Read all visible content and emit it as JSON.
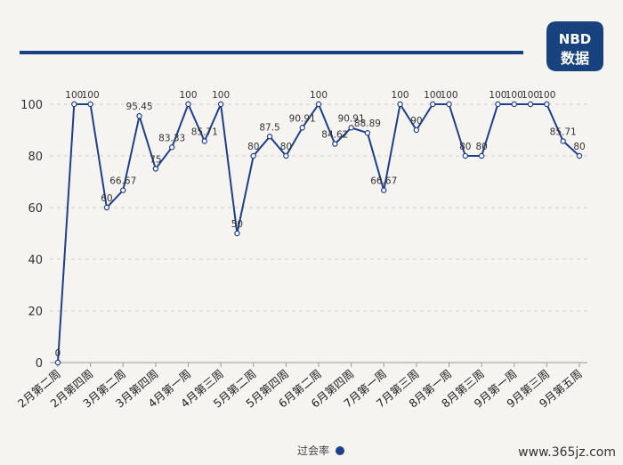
{
  "logo": {
    "line1": "NBD",
    "line2": "数据",
    "color": "#17427e"
  },
  "colors": {
    "line": "#1f3f88",
    "header_bar": "#17427e",
    "grid": "#cfcfcf"
  },
  "legend": {
    "label": "过会率"
  },
  "watermark": "www.365jz.com",
  "chart_data": {
    "type": "line",
    "ylim": [
      0,
      100
    ],
    "yticks": [
      0,
      20,
      40,
      60,
      80,
      100
    ],
    "xtick_labels": [
      "2月第二周",
      "2月第四周",
      "3月第二周",
      "3月第四周",
      "4月第一周",
      "4月第三周",
      "5月第二周",
      "5月第四周",
      "6月第二周",
      "6月第四周",
      "7月第一周",
      "7月第三周",
      "8月第一周",
      "8月第三周",
      "9月第一周",
      "9月第三周",
      "9月第五周"
    ],
    "xtick_index": [
      0,
      2,
      4,
      6,
      8,
      10,
      12,
      14,
      16,
      18,
      20,
      22,
      24,
      26,
      28,
      30,
      32
    ],
    "series": [
      {
        "name": "过会率",
        "values": [
          0,
          100,
          100,
          60,
          66.67,
          95.45,
          75,
          83.33,
          100,
          85.71,
          100,
          50,
          80,
          87.5,
          80,
          90.91,
          100,
          84.62,
          90.91,
          88.89,
          66.67,
          100,
          90,
          100,
          100,
          80,
          80,
          100,
          100,
          100,
          100,
          85.71,
          80
        ],
        "labels": [
          "0",
          "100",
          "100",
          "60",
          "66.67",
          "95.45",
          "75",
          "83.33",
          "100",
          "85.71",
          "100",
          "50",
          "80",
          "87.5",
          "80",
          "90.91",
          "100",
          "84.62",
          "90.91",
          "88.89",
          "66.67",
          "100",
          "90",
          "100",
          "100",
          "80",
          "80",
          "100",
          "100",
          "100",
          "100",
          "85.71",
          "80"
        ]
      }
    ],
    "grid": true
  }
}
